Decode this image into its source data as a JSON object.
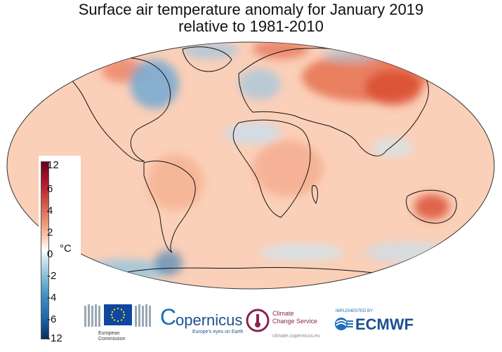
{
  "title": {
    "line1": "Surface air temperature anomaly for January 2019",
    "line2": "relative to 1981-2010"
  },
  "colorbar": {
    "unit": "°C",
    "ticks": [
      "12",
      "6",
      "4",
      "2",
      "0",
      "-2",
      "-4",
      "-6",
      "-12"
    ],
    "colors": [
      "#67001f",
      "#b2182b",
      "#d6604d",
      "#f4a582",
      "#fddbc7",
      "#ffffff",
      "#d1e5f0",
      "#92c5de",
      "#4393c3",
      "#2166ac",
      "#053061"
    ]
  },
  "logos": {
    "ec": {
      "line1": "European",
      "line2": "Commission",
      "icon": "eu-flag-icon"
    },
    "copernicus": {
      "name": "opernicus",
      "letter": "C",
      "tagline": "Europe's eyes on Earth"
    },
    "c3s": {
      "line1": "Climate",
      "line2": "Change Service",
      "url": "climate.copernicus.eu",
      "icon": "thermometer-icon"
    },
    "ecmwf": {
      "small": "IMPLEMENTED BY",
      "name": "ECMWF"
    }
  }
}
